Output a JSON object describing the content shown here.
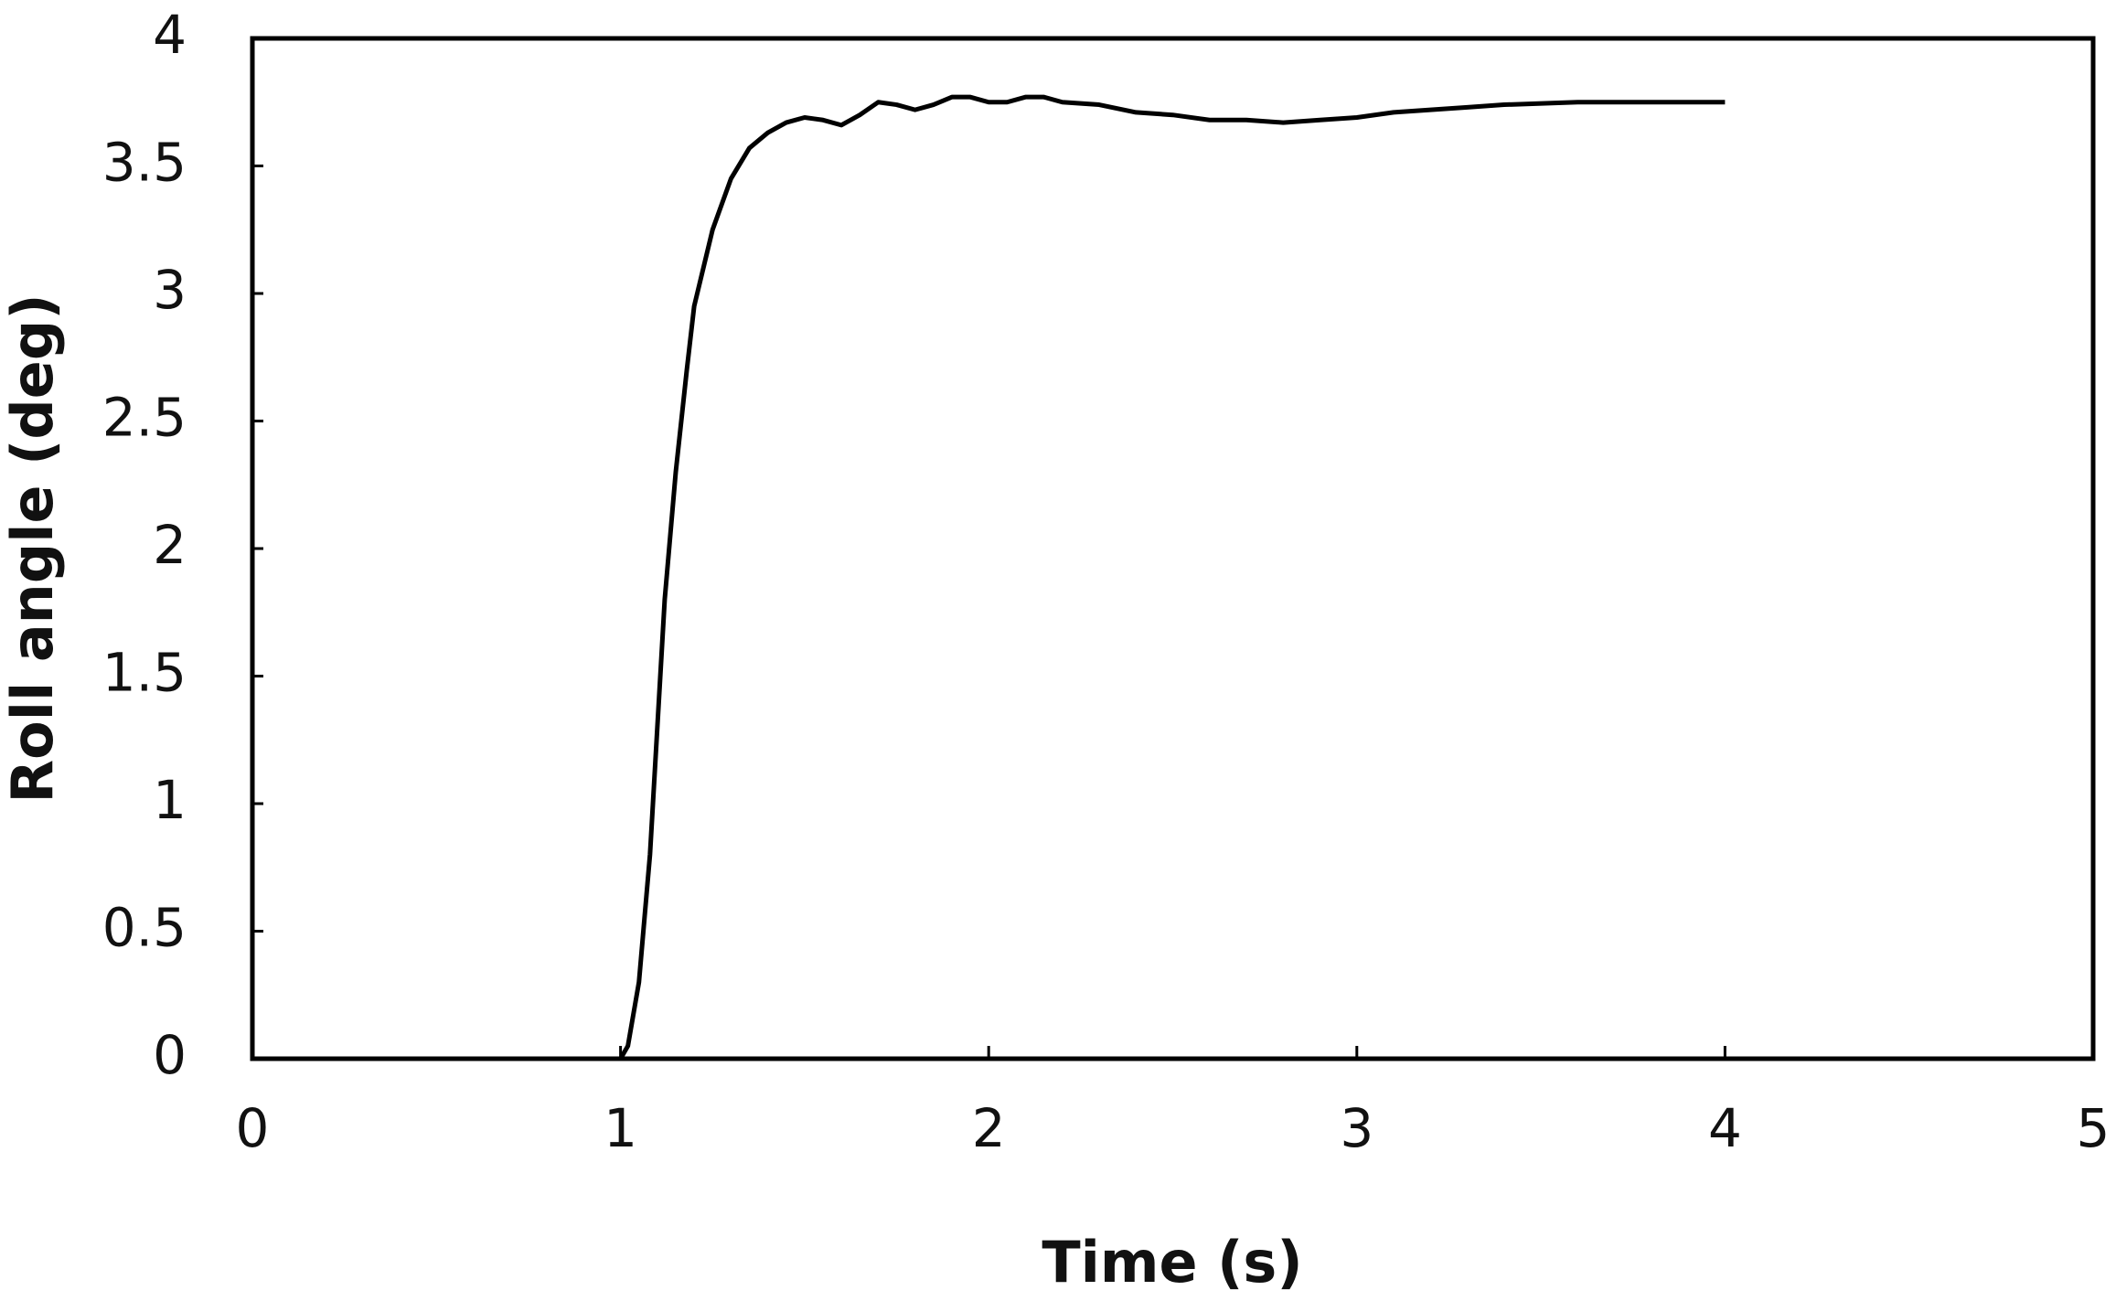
{
  "chart_data": {
    "type": "line",
    "x_label": "Time (s)",
    "y_label": "Roll angle (deg)",
    "x": [
      1.0,
      1.02,
      1.05,
      1.08,
      1.1,
      1.12,
      1.15,
      1.18,
      1.2,
      1.25,
      1.3,
      1.35,
      1.4,
      1.45,
      1.5,
      1.55,
      1.6,
      1.65,
      1.7,
      1.75,
      1.8,
      1.85,
      1.9,
      1.95,
      2.0,
      2.05,
      2.1,
      2.15,
      2.2,
      2.3,
      2.4,
      2.5,
      2.6,
      2.7,
      2.8,
      2.9,
      3.0,
      3.1,
      3.2,
      3.3,
      3.4,
      3.6,
      3.8,
      4.0
    ],
    "series": [
      {
        "color": "#000000",
        "values": [
          0,
          0.05,
          0.3,
          0.8,
          1.3,
          1.8,
          2.3,
          2.7,
          2.95,
          3.25,
          3.45,
          3.57,
          3.63,
          3.67,
          3.69,
          3.68,
          3.66,
          3.7,
          3.75,
          3.74,
          3.72,
          3.74,
          3.77,
          3.77,
          3.75,
          3.75,
          3.77,
          3.77,
          3.75,
          3.74,
          3.71,
          3.7,
          3.68,
          3.68,
          3.67,
          3.68,
          3.69,
          3.71,
          3.72,
          3.73,
          3.74,
          3.75,
          3.75,
          3.75
        ]
      }
    ],
    "xlim": [
      0,
      5
    ],
    "xticks": [
      0,
      1,
      2,
      3,
      4,
      5
    ],
    "ylim": [
      0,
      4
    ],
    "yticks": [
      0,
      0.5,
      1,
      1.5,
      2,
      2.5,
      3,
      3.5,
      4
    ],
    "grid": false
  }
}
